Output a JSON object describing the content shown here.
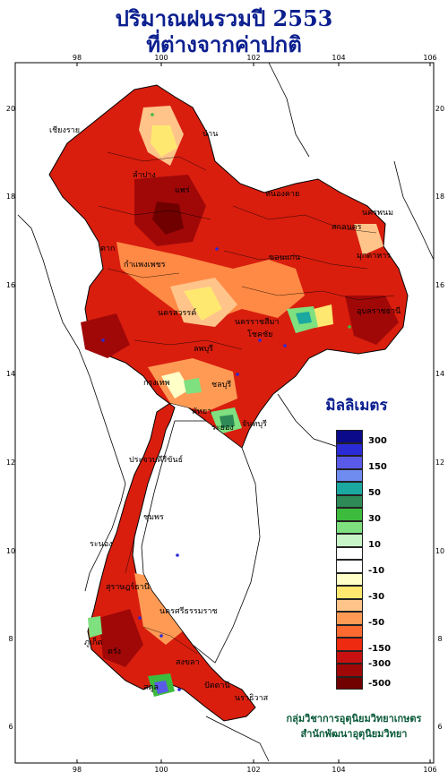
{
  "title": {
    "line1": "ปริมาณฝนรวมปี  2553",
    "line2": "ที่ต่างจากค่าปกติ"
  },
  "legend": {
    "title": "มิลลิเมตร",
    "colors": [
      "#0a0a8a",
      "#2a2ad6",
      "#5a5ae8",
      "#6f8cf0",
      "#1aa8a0",
      "#2e8b57",
      "#3dbb3d",
      "#7ee07e",
      "#c8f5c8",
      "#ffffff",
      "#ffffff",
      "#ffffc8",
      "#ffe870",
      "#ffc48a",
      "#ff9a55",
      "#ff6a30",
      "#ee2a10",
      "#c81010",
      "#a00808",
      "#700000"
    ],
    "labels": [
      "300",
      "150",
      "50",
      "30",
      "10",
      "-10",
      "-30",
      "-50",
      "-150",
      "-300",
      "-500"
    ]
  },
  "axes": {
    "lon_ticks": [
      "98",
      "100",
      "102",
      "104",
      "106"
    ],
    "lat_ticks": [
      "20",
      "18",
      "16",
      "14",
      "12",
      "10",
      "8",
      "6"
    ]
  },
  "places": [
    "เชียงราย",
    "น่าน",
    "ลำปาง",
    "แพร่",
    "หนองคาย",
    "สกลนคร",
    "นครพนม",
    "ขอนแก่น",
    "มุกดาหาร",
    "อุบลราชธานี",
    "นครราชสีมา",
    "โชคชัย",
    "ตาก",
    "กำแพงเพชร",
    "นครสวรรค์",
    "กรุงเทพ",
    "ลพบุรี",
    "ชลบุรี",
    "พัทยา",
    "ระยอง",
    "จันทบุรี",
    "ประจวบคีรีขันธ์",
    "ชุมพร",
    "ระนอง",
    "สุราษฎร์ธานี",
    "ภูเก็ต",
    "นครศรีธรรมราช",
    "ตรัง",
    "สงขลา",
    "ปัตตานี",
    "นราธิวาส",
    "สตูล"
  ],
  "credit": {
    "line1": "กลุ่มวิชาการอุตุนิยมวิทยาเกษตร",
    "line2": "สำนักพัฒนาอุตุนิยมวิทยา"
  }
}
